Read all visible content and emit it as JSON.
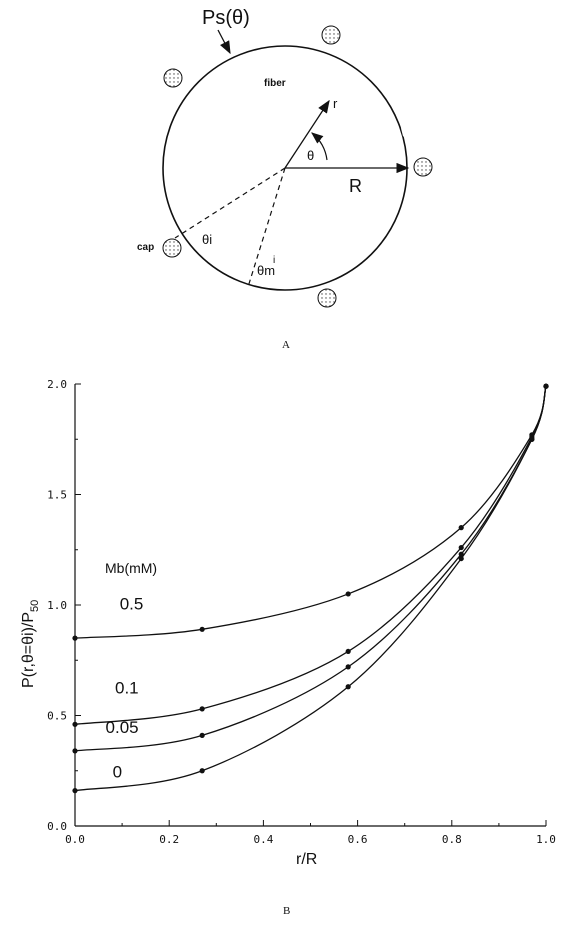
{
  "diagram": {
    "ps_label": "Ps(θ)",
    "fiber_label": "fiber",
    "cap_label": "cap",
    "r_label": "r",
    "theta_label": "θ",
    "R_label": "R",
    "theta_i_label": "θi",
    "theta_m_label": "θm",
    "theta_m_sup": "i",
    "panel_label": "A"
  },
  "panel_b_label": "B",
  "chart_data": {
    "type": "line",
    "xlabel": "r/R",
    "ylabel": "P(r,θ=θi)/P50",
    "ylabel_main": "P(r,θ=θi)/P",
    "ylabel_sub": "50",
    "xlim": [
      0.0,
      1.0
    ],
    "ylim": [
      0.0,
      2.0
    ],
    "x_ticks": [
      "0.0",
      "0.2",
      "0.4",
      "0.6",
      "0.8",
      "1.0"
    ],
    "y_ticks": [
      "0.0",
      "0.5",
      "1.0",
      "1.5",
      "2.0"
    ],
    "legend_title": "Mb(mM)",
    "x": [
      0.0,
      0.27,
      0.58,
      0.82,
      0.97,
      1.0
    ],
    "series": [
      {
        "name": "0.5",
        "values": [
          0.85,
          0.89,
          1.05,
          1.35,
          1.77,
          1.99
        ]
      },
      {
        "name": "0.1",
        "values": [
          0.46,
          0.53,
          0.79,
          1.26,
          1.76,
          1.99
        ]
      },
      {
        "name": "0.05",
        "values": [
          0.34,
          0.41,
          0.72,
          1.23,
          1.75,
          1.99
        ]
      },
      {
        "name": "0",
        "values": [
          0.16,
          0.25,
          0.63,
          1.21,
          1.75,
          1.99
        ]
      }
    ]
  }
}
